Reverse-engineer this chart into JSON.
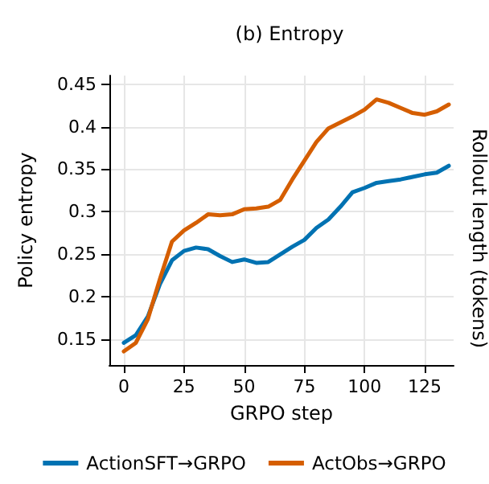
{
  "chart_data": {
    "type": "line",
    "title": "(b) Entropy",
    "xlabel": "GRPO step",
    "ylabel": "Policy entropy",
    "annotations": [
      "Rollout length (tokens)"
    ],
    "x": [
      0,
      5,
      10,
      15,
      20,
      25,
      30,
      35,
      40,
      45,
      50,
      55,
      60,
      65,
      70,
      75,
      80,
      85,
      90,
      95,
      100,
      105,
      110,
      115,
      120,
      125,
      130,
      135
    ],
    "series": [
      {
        "name": "ActionSFT→GRPO",
        "color": "#0072b2",
        "values": [
          0.146,
          0.155,
          0.177,
          0.215,
          0.243,
          0.254,
          0.258,
          0.256,
          0.248,
          0.241,
          0.244,
          0.24,
          0.241,
          0.25,
          0.259,
          0.267,
          0.281,
          0.291,
          0.306,
          0.323,
          0.328,
          0.334,
          0.336,
          0.338,
          0.341,
          0.344,
          0.346,
          0.354
        ]
      },
      {
        "name": "ActObs→GRPO",
        "color": "#d55e00",
        "values": [
          0.136,
          0.146,
          0.174,
          0.221,
          0.265,
          0.278,
          0.287,
          0.297,
          0.296,
          0.297,
          0.303,
          0.304,
          0.306,
          0.314,
          0.338,
          0.36,
          0.382,
          0.398,
          0.405,
          0.412,
          0.42,
          0.432,
          0.428,
          0.422,
          0.416,
          0.414,
          0.418,
          0.426
        ]
      }
    ],
    "xlim": [
      -6,
      137
    ],
    "xticks": [
      0,
      25,
      50,
      75,
      100,
      125
    ],
    "ylim": [
      0.12,
      0.46
    ],
    "yticks": [
      0.15,
      0.2,
      0.25,
      0.3,
      0.35,
      0.4,
      0.45
    ],
    "grid": true,
    "legend": "bottom",
    "marker": "none",
    "line_style": "solid"
  }
}
